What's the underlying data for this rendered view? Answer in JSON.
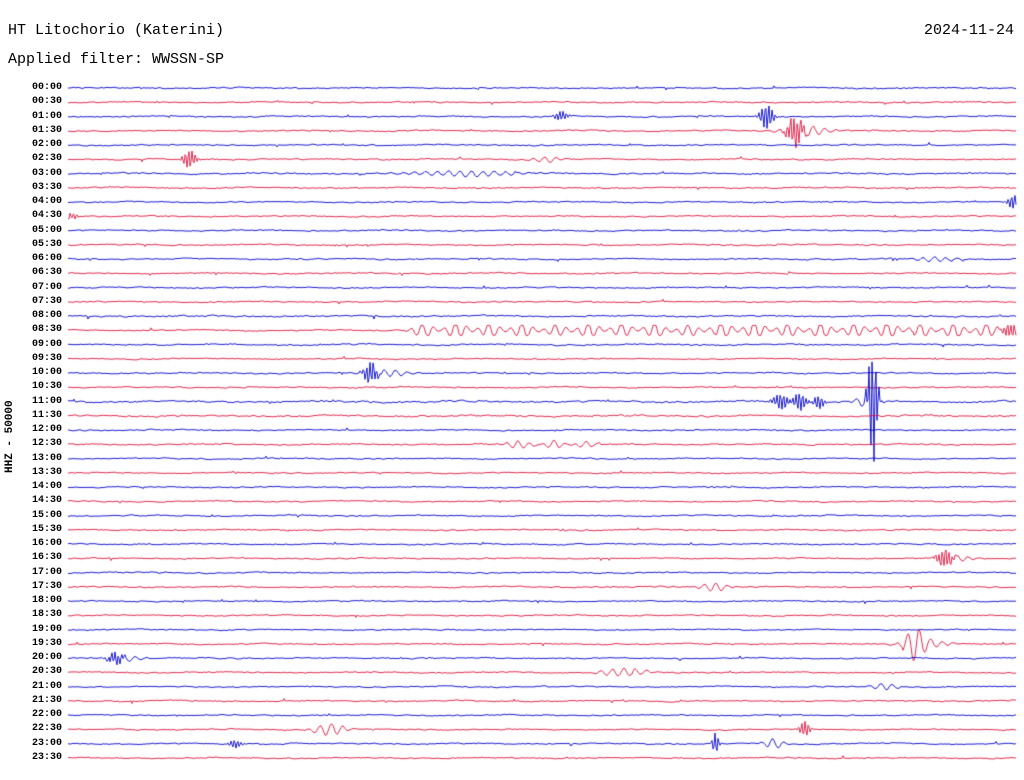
{
  "header": {
    "station": "HT Litochorio (Katerini)",
    "date": "2024-11-24",
    "filter": "Applied filter: WWSSN-SP"
  },
  "axis": {
    "left_label": "HHZ - 50000"
  },
  "chart_data": {
    "type": "line",
    "subtype": "helicorder-seismogram",
    "title": "HT Litochorio (Katerini)",
    "date": "2024-11-24",
    "filter": "WWSSN-SP",
    "channel_scale": "HHZ - 50000",
    "row_interval_minutes": 30,
    "time_start": "00:00",
    "time_end": "24:00",
    "legend": "none",
    "grid": false,
    "palette": {
      "blue": "#0000cc",
      "red": "#dc143c",
      "background": "#ffffff"
    },
    "rows": [
      {
        "label": "00:00",
        "color": "blue",
        "events": []
      },
      {
        "label": "00:30",
        "color": "red",
        "events": []
      },
      {
        "label": "01:00",
        "color": "blue",
        "events": [
          {
            "x": 0.52,
            "a": 5,
            "w": 0.005
          },
          {
            "x": 0.737,
            "a": 13,
            "w": 0.005
          }
        ]
      },
      {
        "label": "01:30",
        "color": "red",
        "events": [
          {
            "x": 0.767,
            "a": 15,
            "w": 0.006
          },
          {
            "x": 0.778,
            "a": 5,
            "w": 0.018
          }
        ]
      },
      {
        "label": "02:00",
        "color": "blue",
        "events": []
      },
      {
        "label": "02:30",
        "color": "red",
        "events": [
          {
            "x": 0.128,
            "a": 9,
            "w": 0.005
          },
          {
            "x": 0.505,
            "a": 2.5,
            "w": 0.012
          }
        ]
      },
      {
        "label": "03:00",
        "color": "blue",
        "noise": 1.15,
        "events": [
          {
            "x": 0.42,
            "a": 2.8,
            "w": 0.04
          }
        ]
      },
      {
        "label": "03:30",
        "color": "red",
        "events": []
      },
      {
        "label": "04:00",
        "color": "blue",
        "events": [
          {
            "x": 0.997,
            "a": 7,
            "w": 0.004
          }
        ]
      },
      {
        "label": "04:30",
        "color": "red",
        "events": [
          {
            "x": 0.004,
            "a": 4,
            "w": 0.004
          }
        ]
      },
      {
        "label": "05:00",
        "color": "blue",
        "events": []
      },
      {
        "label": "05:30",
        "color": "red",
        "events": []
      },
      {
        "label": "06:00",
        "color": "blue",
        "events": [
          {
            "x": 0.915,
            "a": 2.6,
            "w": 0.015
          }
        ]
      },
      {
        "label": "06:30",
        "color": "red",
        "events": []
      },
      {
        "label": "07:00",
        "color": "blue",
        "events": []
      },
      {
        "label": "07:30",
        "color": "red",
        "events": []
      },
      {
        "label": "08:00",
        "color": "blue",
        "noise": 1.25,
        "events": []
      },
      {
        "label": "08:30",
        "color": "red",
        "clip": 5,
        "events": [
          {
            "x": 0.375,
            "a": 7,
            "w": 0.008
          },
          {
            "x": 0.41,
            "a": 9,
            "w": 0.008
          },
          {
            "x": 0.445,
            "a": 7,
            "w": 0.008
          },
          {
            "x": 0.48,
            "a": 8,
            "w": 0.008
          },
          {
            "x": 0.515,
            "a": 6,
            "w": 0.008
          },
          {
            "x": 0.55,
            "a": 8,
            "w": 0.008
          },
          {
            "x": 0.585,
            "a": 7,
            "w": 0.008
          },
          {
            "x": 0.62,
            "a": 8,
            "w": 0.008
          },
          {
            "x": 0.655,
            "a": 6,
            "w": 0.008
          },
          {
            "x": 0.69,
            "a": 8,
            "w": 0.008
          },
          {
            "x": 0.725,
            "a": 9,
            "w": 0.008
          },
          {
            "x": 0.76,
            "a": 7,
            "w": 0.008
          },
          {
            "x": 0.795,
            "a": 8,
            "w": 0.008
          },
          {
            "x": 0.83,
            "a": 7,
            "w": 0.008
          },
          {
            "x": 0.865,
            "a": 9,
            "w": 0.008
          },
          {
            "x": 0.9,
            "a": 7,
            "w": 0.008
          },
          {
            "x": 0.935,
            "a": 8,
            "w": 0.008
          },
          {
            "x": 0.97,
            "a": 7,
            "w": 0.008
          },
          {
            "x": 0.995,
            "a": 8,
            "w": 0.006
          }
        ]
      },
      {
        "label": "09:00",
        "color": "blue",
        "noise": 1.15,
        "events": []
      },
      {
        "label": "09:30",
        "color": "red",
        "events": []
      },
      {
        "label": "10:00",
        "color": "blue",
        "events": [
          {
            "x": 0.319,
            "a": 11,
            "w": 0.005
          },
          {
            "x": 0.335,
            "a": 3.5,
            "w": 0.018
          }
        ]
      },
      {
        "label": "10:30",
        "color": "red",
        "events": []
      },
      {
        "label": "11:00",
        "color": "blue",
        "noise": 1.5,
        "events": [
          {
            "x": 0.752,
            "a": 8,
            "w": 0.006
          },
          {
            "x": 0.772,
            "a": 9,
            "w": 0.005
          },
          {
            "x": 0.792,
            "a": 7,
            "w": 0.004
          },
          {
            "x": 0.845,
            "a": 9,
            "w": 0.008
          },
          {
            "x": 0.849,
            "a": 58,
            "w": 0.0035
          }
        ]
      },
      {
        "label": "11:30",
        "color": "red",
        "noise": 1.3,
        "events": []
      },
      {
        "label": "12:00",
        "color": "blue",
        "events": []
      },
      {
        "label": "12:30",
        "color": "red",
        "events": [
          {
            "x": 0.475,
            "a": 4,
            "w": 0.01
          },
          {
            "x": 0.513,
            "a": 4,
            "w": 0.007
          },
          {
            "x": 0.547,
            "a": 3,
            "w": 0.008
          }
        ]
      },
      {
        "label": "13:00",
        "color": "blue",
        "events": []
      },
      {
        "label": "13:30",
        "color": "red",
        "events": []
      },
      {
        "label": "14:00",
        "color": "blue",
        "events": []
      },
      {
        "label": "14:30",
        "color": "red",
        "events": []
      },
      {
        "label": "15:00",
        "color": "blue",
        "events": []
      },
      {
        "label": "15:30",
        "color": "red",
        "events": []
      },
      {
        "label": "16:00",
        "color": "blue",
        "events": []
      },
      {
        "label": "16:30",
        "color": "red",
        "events": [
          {
            "x": 0.925,
            "a": 9,
            "w": 0.006
          },
          {
            "x": 0.935,
            "a": 3,
            "w": 0.014
          }
        ]
      },
      {
        "label": "17:00",
        "color": "blue",
        "events": []
      },
      {
        "label": "17:30",
        "color": "red",
        "events": [
          {
            "x": 0.682,
            "a": 4.5,
            "w": 0.01
          }
        ]
      },
      {
        "label": "18:00",
        "color": "blue",
        "events": []
      },
      {
        "label": "18:30",
        "color": "red",
        "events": []
      },
      {
        "label": "19:00",
        "color": "blue",
        "events": []
      },
      {
        "label": "19:30",
        "color": "red",
        "events": [
          {
            "x": 0.893,
            "a": 14,
            "w": 0.007
          },
          {
            "x": 0.905,
            "a": 4,
            "w": 0.016
          }
        ]
      },
      {
        "label": "20:00",
        "color": "blue",
        "events": [
          {
            "x": 0.05,
            "a": 6,
            "w": 0.006
          },
          {
            "x": 0.06,
            "a": 2.5,
            "w": 0.014
          }
        ]
      },
      {
        "label": "20:30",
        "color": "red",
        "events": [
          {
            "x": 0.585,
            "a": 4,
            "w": 0.018
          }
        ]
      },
      {
        "label": "21:00",
        "color": "blue",
        "events": [
          {
            "x": 0.862,
            "a": 3.5,
            "w": 0.01
          }
        ]
      },
      {
        "label": "21:30",
        "color": "red",
        "events": []
      },
      {
        "label": "22:00",
        "color": "blue",
        "events": []
      },
      {
        "label": "22:30",
        "color": "red",
        "events": [
          {
            "x": 0.276,
            "a": 6,
            "w": 0.012
          },
          {
            "x": 0.777,
            "a": 8,
            "w": 0.004
          }
        ]
      },
      {
        "label": "23:00",
        "color": "blue",
        "events": [
          {
            "x": 0.176,
            "a": 4,
            "w": 0.005
          },
          {
            "x": 0.683,
            "a": 11,
            "w": 0.0025
          },
          {
            "x": 0.745,
            "a": 5,
            "w": 0.008
          }
        ]
      },
      {
        "label": "23:30",
        "color": "red",
        "events": []
      }
    ]
  }
}
